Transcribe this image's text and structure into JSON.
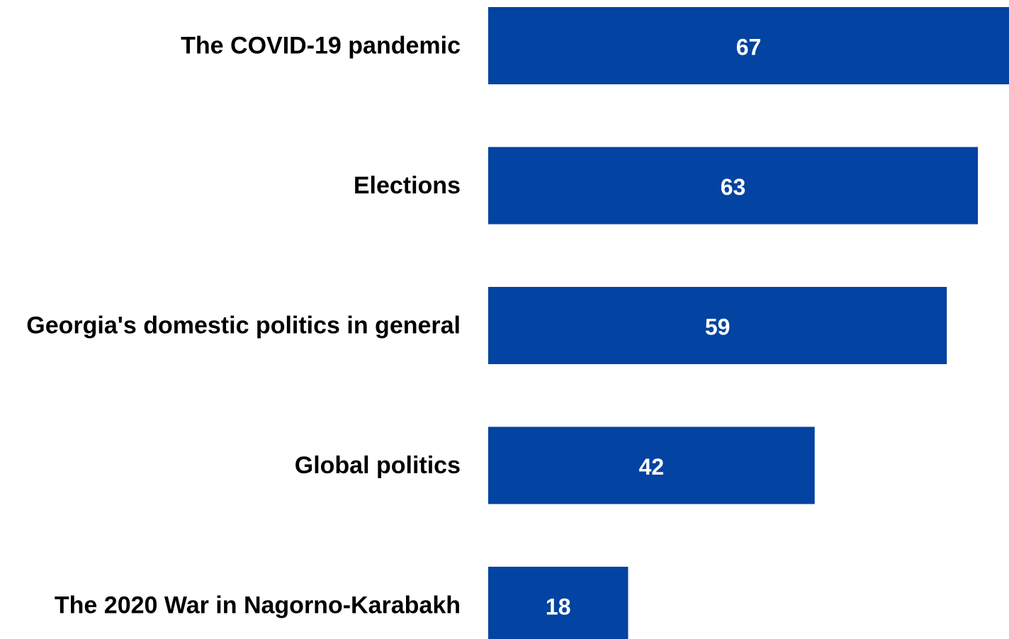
{
  "chart_data": {
    "type": "bar",
    "orientation": "horizontal",
    "categories": [
      "The COVID-19 pandemic",
      "Elections",
      "Georgia's domestic politics in general",
      "Global politics",
      "The 2020 War in Nagorno-Karabakh"
    ],
    "values": [
      67,
      63,
      59,
      42,
      18
    ],
    "value_labels": [
      "67",
      "63",
      "59",
      "42",
      "18"
    ],
    "title": "",
    "xlabel": "",
    "ylabel": "",
    "xlim": [
      0,
      67
    ],
    "grid": false,
    "legend": "none",
    "bar_color": "#0343A1"
  }
}
